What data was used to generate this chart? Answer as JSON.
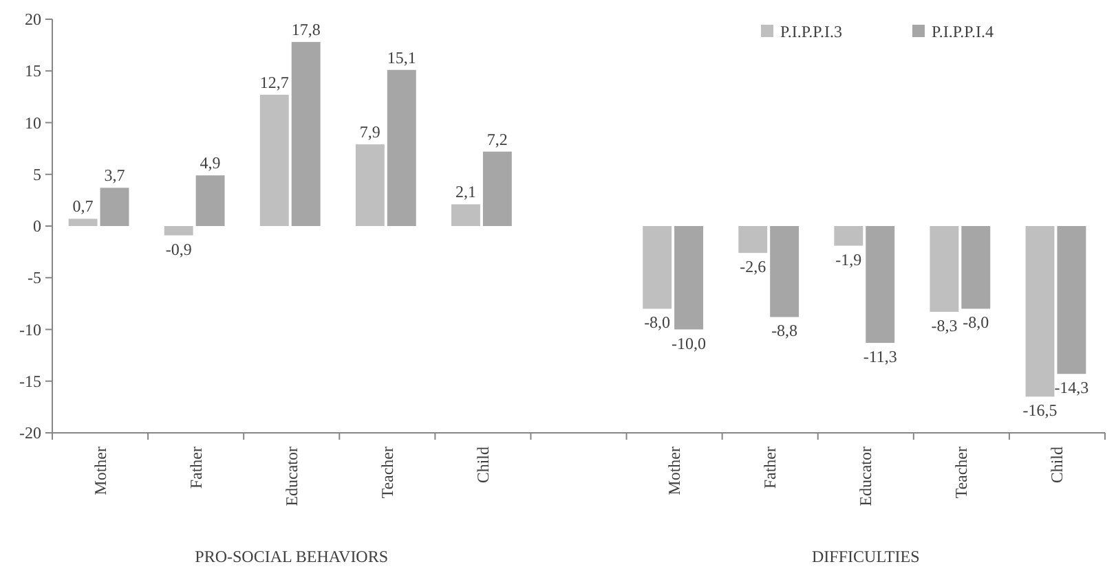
{
  "chart_data": {
    "type": "bar",
    "categories": [
      "Mother",
      "Father",
      "Educator",
      "Teacher",
      "Child",
      null,
      "Mother",
      "Father",
      "Educator",
      "Teacher",
      "Child"
    ],
    "series": [
      {
        "name": "P.I.P.P.I.3",
        "color": "#bfbfbf",
        "values": [
          0.7,
          -0.9,
          12.7,
          7.9,
          2.1,
          null,
          -8.0,
          -2.6,
          -1.9,
          -8.3,
          -16.5
        ],
        "value_labels": [
          "0,7",
          "-0,9",
          "12,7",
          "7,9",
          "2,1",
          null,
          "-8,0",
          "-2,6",
          "-1,9",
          "-8,3",
          "-16,5"
        ]
      },
      {
        "name": "P.I.P.P.I.4",
        "color": "#a6a6a6",
        "values": [
          3.7,
          4.9,
          17.8,
          15.1,
          7.2,
          null,
          -10.0,
          -8.8,
          -11.3,
          -8.0,
          -14.3
        ],
        "value_labels": [
          "3,7",
          "4,9",
          "17,8",
          "15,1",
          "7,2",
          null,
          "-10,0",
          "-8,8",
          "-11,3",
          "-8,0",
          "-14,3"
        ]
      }
    ],
    "ylim": [
      -20,
      20
    ],
    "yticks": [
      -20,
      -15,
      -10,
      -5,
      0,
      5,
      10,
      15,
      20
    ],
    "grid": false,
    "legend": "top right",
    "annotations": [
      "PRO-SOCIAL BEHAVIORS",
      "DIFFICULTIES"
    ]
  }
}
